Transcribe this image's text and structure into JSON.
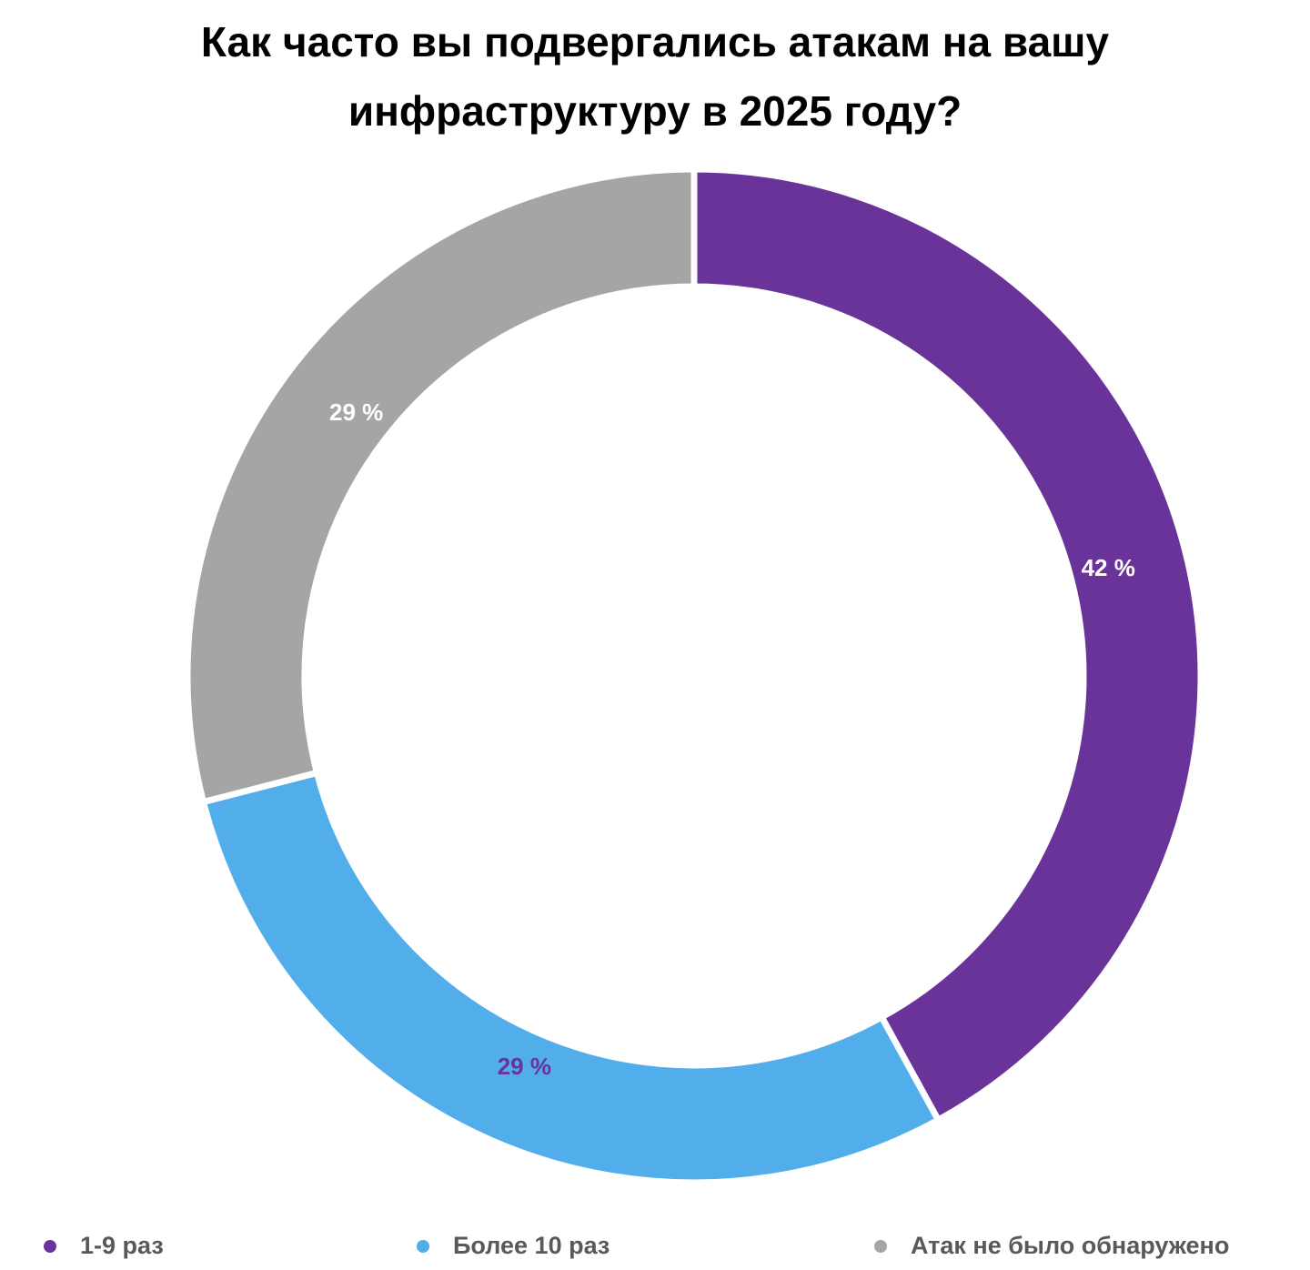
{
  "chart_data": {
    "type": "donut",
    "title": "Как часто вы подвергались атакам на вашу инфраструктуру в 2025 году?",
    "categories": [
      "1-9 раз",
      "Более 10 раз",
      "Атак не было обнаружено"
    ],
    "values": [
      42,
      29,
      29
    ],
    "value_labels": [
      "42 %",
      "29 %",
      "29 %"
    ],
    "colors": [
      "#6a3399",
      "#52aeea",
      "#a5a5a5"
    ],
    "value_label_colors": [
      "#ffffff",
      "#6a3399",
      "#ffffff"
    ],
    "legend": "bottom"
  }
}
